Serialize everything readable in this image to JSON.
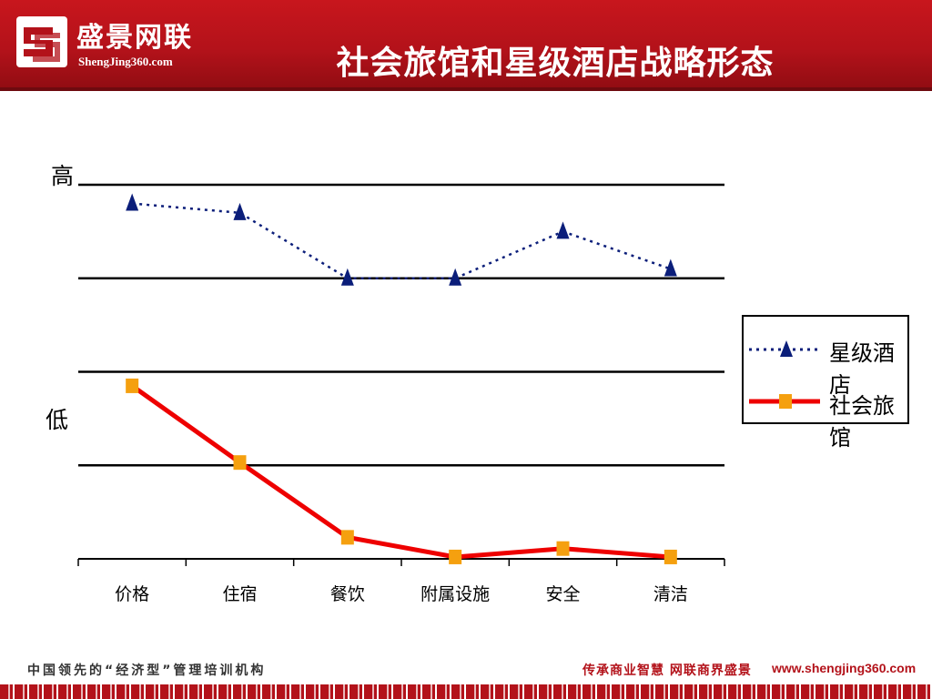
{
  "header": {
    "logo_name": "盛景网联",
    "logo_url": "ShengJing360.com",
    "title": "社会旅馆和星级酒店战略形态"
  },
  "chart_data": {
    "type": "line",
    "categories": [
      "价格",
      "住宿",
      "餐饮",
      "附属设施",
      "安全",
      "清洁"
    ],
    "ylabel_high": "高",
    "ylabel_low": "低",
    "series": [
      {
        "name": "星级酒店",
        "style": "dotted",
        "marker": "triangle",
        "color": "#0b1e7a",
        "values": [
          3.8,
          3.7,
          3.0,
          3.0,
          3.5,
          3.1
        ]
      },
      {
        "name": "社会旅馆",
        "style": "solid",
        "marker": "square",
        "color": "#ee0000",
        "marker_color": "#f5a00f",
        "values": [
          1.85,
          1.03,
          0.23,
          0.02,
          0.11,
          0.02
        ]
      }
    ],
    "ylim": [
      0,
      4
    ],
    "gridlines": [
      1,
      2,
      3,
      4
    ],
    "legend_position": "right"
  },
  "footer": {
    "left_text": "中国领先的“经济型”管理培训机构",
    "right_text": "传承商业智慧 网联商界盛景",
    "url": "www.shengjing360.com"
  }
}
